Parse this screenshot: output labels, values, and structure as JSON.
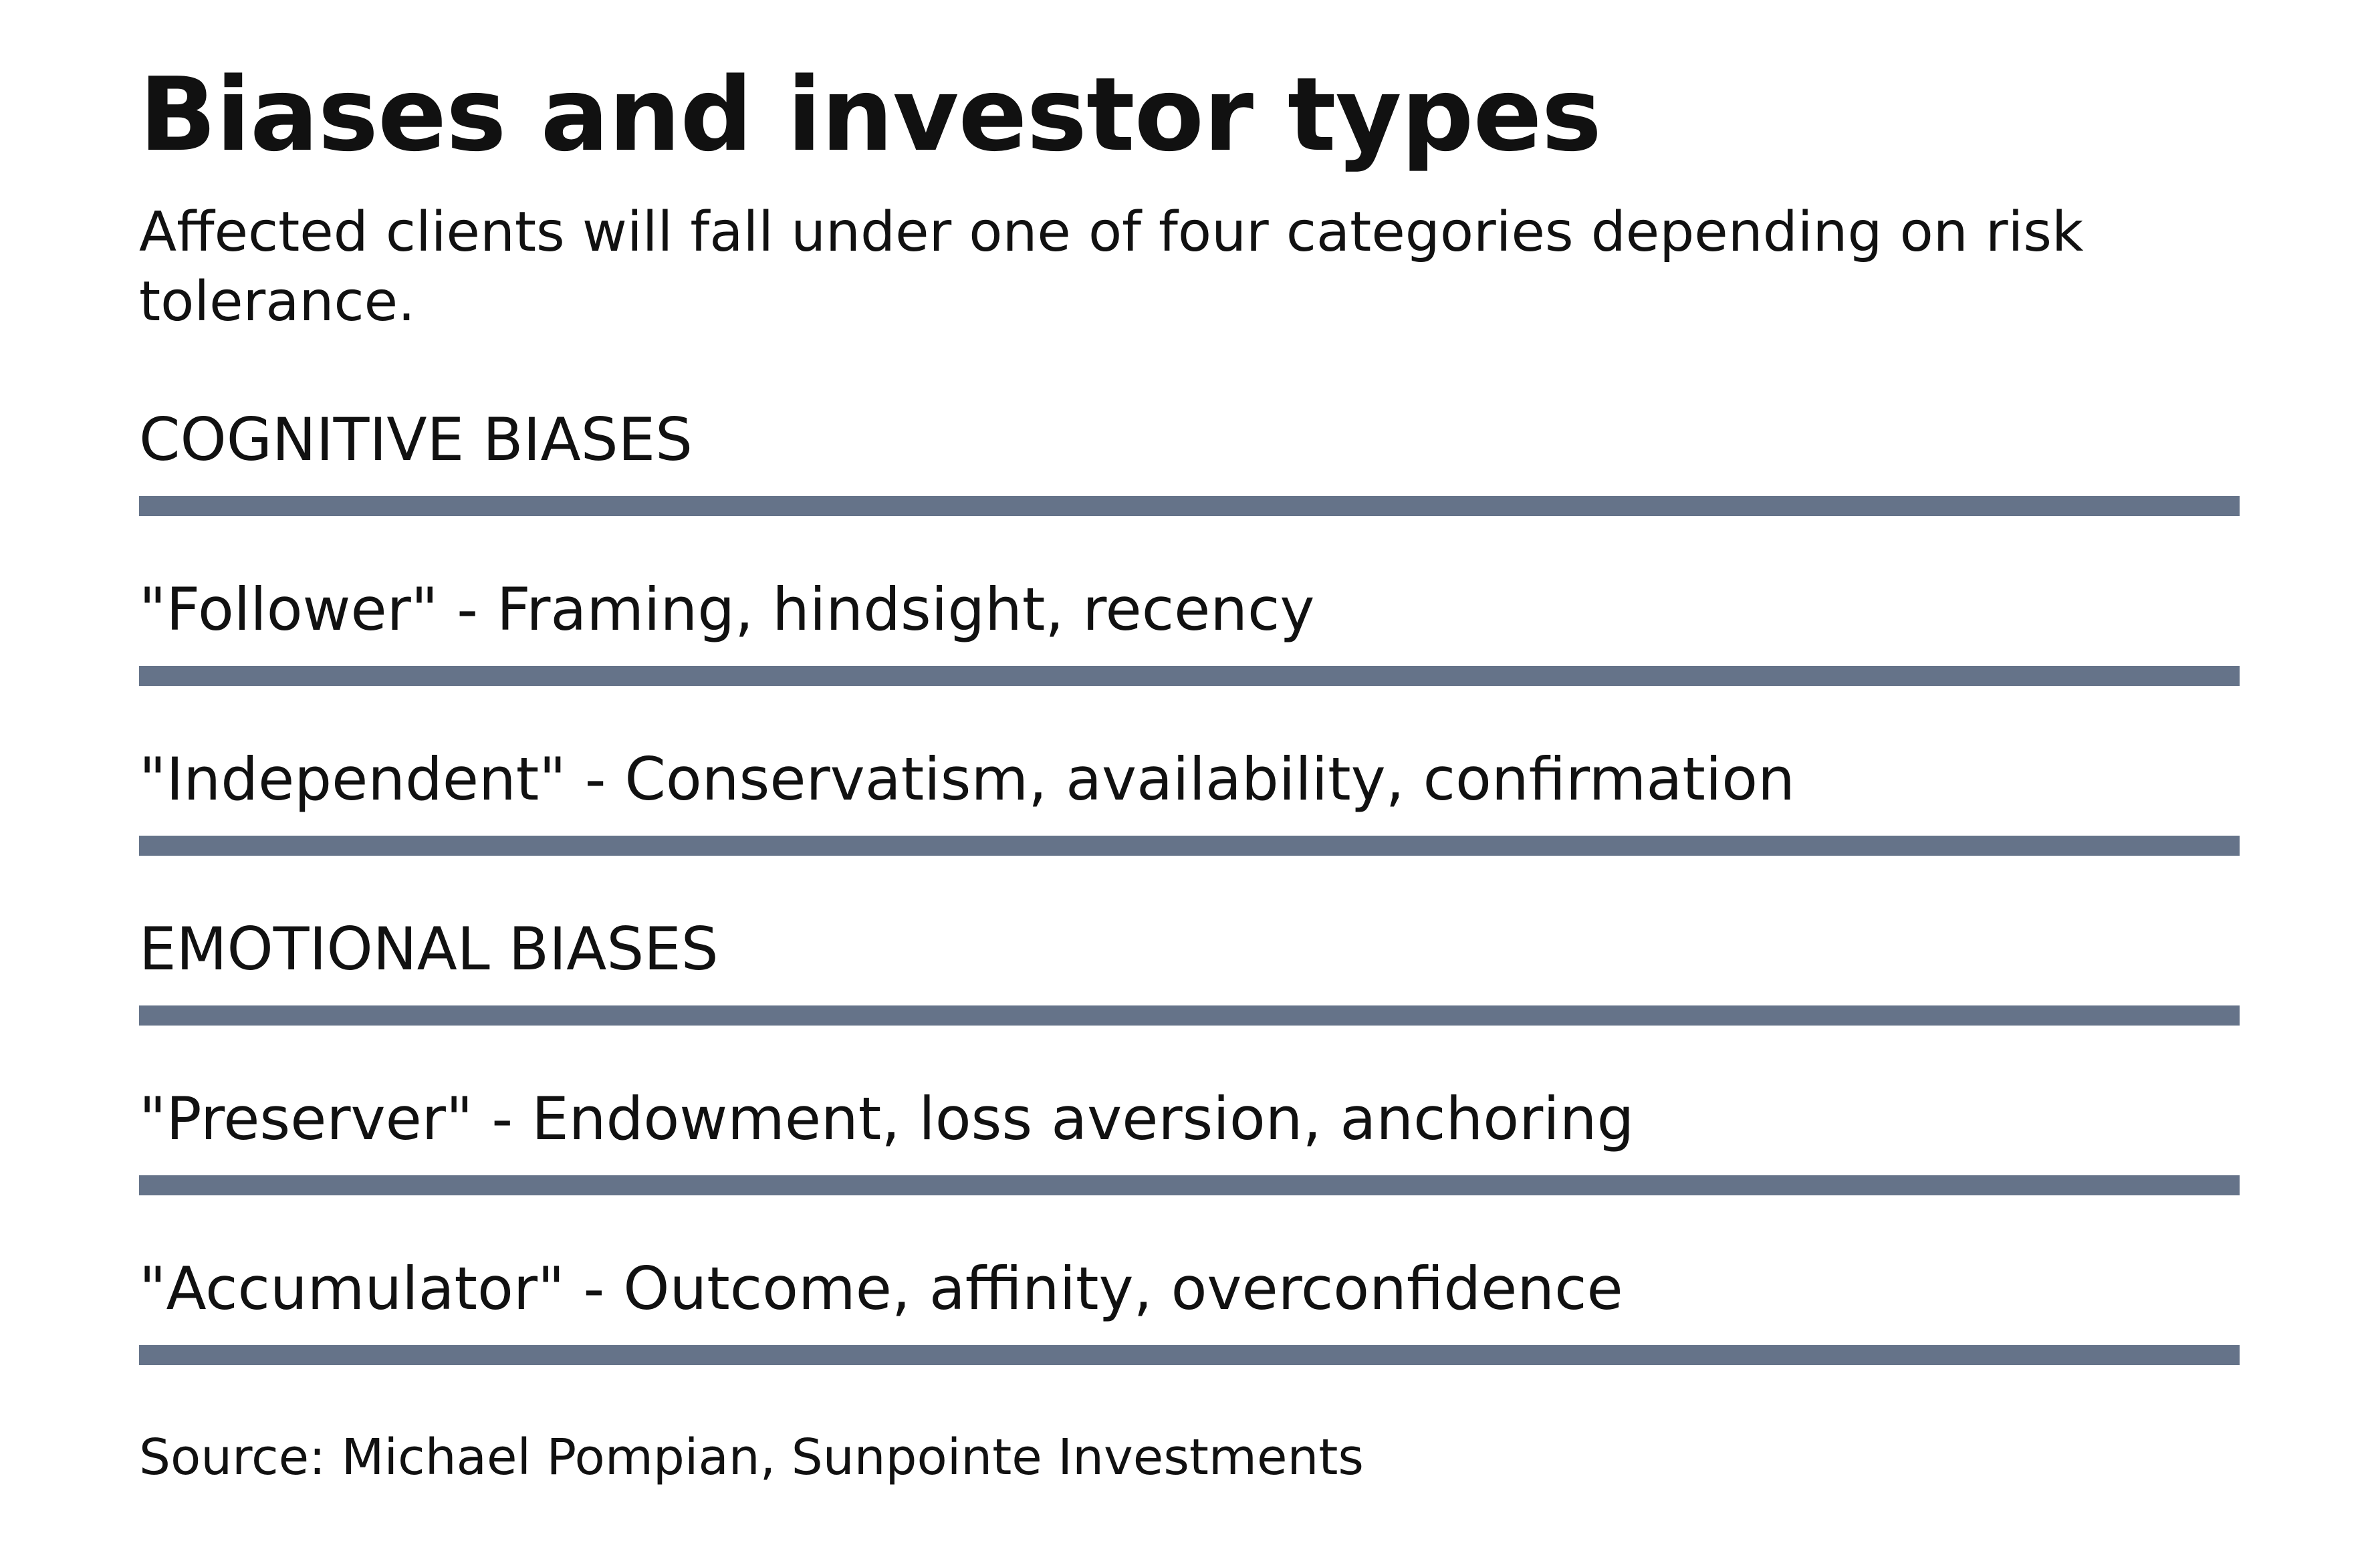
{
  "title": "Biases and investor types",
  "subtitle": "Affected clients will fall under one of four categories depending on risk tolerance.",
  "rows": [
    {
      "text": "COGNITIVE BIASES",
      "kind": "section"
    },
    {
      "text": "\"Follower\" - Framing, hindsight, recency",
      "kind": "item"
    },
    {
      "text": "\"Independent\" - Conservatism, availability, confirmation",
      "kind": "item"
    },
    {
      "text": "EMOTIONAL BIASES",
      "kind": "section"
    },
    {
      "text": "\"Preserver\" - Endowment, loss aversion, anchoring",
      "kind": "item"
    },
    {
      "text": "\"Accumulator\" - Outcome, affinity, overconfidence",
      "kind": "item"
    }
  ],
  "source": "Source: Michael Pompian, Sunpointe Investments",
  "colors": {
    "rule": "#657389",
    "text": "#111111",
    "background": "#ffffff"
  }
}
